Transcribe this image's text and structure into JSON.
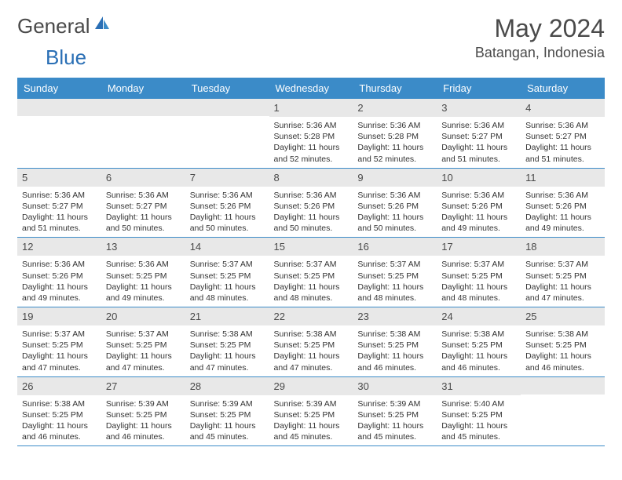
{
  "logo": {
    "general": "General",
    "blue": "Blue"
  },
  "title": "May 2024",
  "location": "Batangan, Indonesia",
  "colors": {
    "header_bg": "#3b8bc8",
    "header_text": "#ffffff",
    "daynum_bg": "#e8e8e8",
    "border": "#3b8bc8",
    "text": "#333333",
    "logo_gray": "#4a4a4a",
    "logo_blue": "#2a6fb5",
    "page_bg": "#ffffff"
  },
  "typography": {
    "title_fontsize": 32,
    "location_fontsize": 18,
    "weekday_fontsize": 13,
    "daynum_fontsize": 13,
    "body_fontsize": 10.5
  },
  "weekdays": [
    "Sunday",
    "Monday",
    "Tuesday",
    "Wednesday",
    "Thursday",
    "Friday",
    "Saturday"
  ],
  "weeks": [
    [
      {
        "n": "",
        "sr": "",
        "ss": "",
        "dl": ""
      },
      {
        "n": "",
        "sr": "",
        "ss": "",
        "dl": ""
      },
      {
        "n": "",
        "sr": "",
        "ss": "",
        "dl": ""
      },
      {
        "n": "1",
        "sr": "5:36 AM",
        "ss": "5:28 PM",
        "dl": "11 hours and 52 minutes."
      },
      {
        "n": "2",
        "sr": "5:36 AM",
        "ss": "5:28 PM",
        "dl": "11 hours and 52 minutes."
      },
      {
        "n": "3",
        "sr": "5:36 AM",
        "ss": "5:27 PM",
        "dl": "11 hours and 51 minutes."
      },
      {
        "n": "4",
        "sr": "5:36 AM",
        "ss": "5:27 PM",
        "dl": "11 hours and 51 minutes."
      }
    ],
    [
      {
        "n": "5",
        "sr": "5:36 AM",
        "ss": "5:27 PM",
        "dl": "11 hours and 51 minutes."
      },
      {
        "n": "6",
        "sr": "5:36 AM",
        "ss": "5:27 PM",
        "dl": "11 hours and 50 minutes."
      },
      {
        "n": "7",
        "sr": "5:36 AM",
        "ss": "5:26 PM",
        "dl": "11 hours and 50 minutes."
      },
      {
        "n": "8",
        "sr": "5:36 AM",
        "ss": "5:26 PM",
        "dl": "11 hours and 50 minutes."
      },
      {
        "n": "9",
        "sr": "5:36 AM",
        "ss": "5:26 PM",
        "dl": "11 hours and 50 minutes."
      },
      {
        "n": "10",
        "sr": "5:36 AM",
        "ss": "5:26 PM",
        "dl": "11 hours and 49 minutes."
      },
      {
        "n": "11",
        "sr": "5:36 AM",
        "ss": "5:26 PM",
        "dl": "11 hours and 49 minutes."
      }
    ],
    [
      {
        "n": "12",
        "sr": "5:36 AM",
        "ss": "5:26 PM",
        "dl": "11 hours and 49 minutes."
      },
      {
        "n": "13",
        "sr": "5:36 AM",
        "ss": "5:25 PM",
        "dl": "11 hours and 49 minutes."
      },
      {
        "n": "14",
        "sr": "5:37 AM",
        "ss": "5:25 PM",
        "dl": "11 hours and 48 minutes."
      },
      {
        "n": "15",
        "sr": "5:37 AM",
        "ss": "5:25 PM",
        "dl": "11 hours and 48 minutes."
      },
      {
        "n": "16",
        "sr": "5:37 AM",
        "ss": "5:25 PM",
        "dl": "11 hours and 48 minutes."
      },
      {
        "n": "17",
        "sr": "5:37 AM",
        "ss": "5:25 PM",
        "dl": "11 hours and 48 minutes."
      },
      {
        "n": "18",
        "sr": "5:37 AM",
        "ss": "5:25 PM",
        "dl": "11 hours and 47 minutes."
      }
    ],
    [
      {
        "n": "19",
        "sr": "5:37 AM",
        "ss": "5:25 PM",
        "dl": "11 hours and 47 minutes."
      },
      {
        "n": "20",
        "sr": "5:37 AM",
        "ss": "5:25 PM",
        "dl": "11 hours and 47 minutes."
      },
      {
        "n": "21",
        "sr": "5:38 AM",
        "ss": "5:25 PM",
        "dl": "11 hours and 47 minutes."
      },
      {
        "n": "22",
        "sr": "5:38 AM",
        "ss": "5:25 PM",
        "dl": "11 hours and 47 minutes."
      },
      {
        "n": "23",
        "sr": "5:38 AM",
        "ss": "5:25 PM",
        "dl": "11 hours and 46 minutes."
      },
      {
        "n": "24",
        "sr": "5:38 AM",
        "ss": "5:25 PM",
        "dl": "11 hours and 46 minutes."
      },
      {
        "n": "25",
        "sr": "5:38 AM",
        "ss": "5:25 PM",
        "dl": "11 hours and 46 minutes."
      }
    ],
    [
      {
        "n": "26",
        "sr": "5:38 AM",
        "ss": "5:25 PM",
        "dl": "11 hours and 46 minutes."
      },
      {
        "n": "27",
        "sr": "5:39 AM",
        "ss": "5:25 PM",
        "dl": "11 hours and 46 minutes."
      },
      {
        "n": "28",
        "sr": "5:39 AM",
        "ss": "5:25 PM",
        "dl": "11 hours and 45 minutes."
      },
      {
        "n": "29",
        "sr": "5:39 AM",
        "ss": "5:25 PM",
        "dl": "11 hours and 45 minutes."
      },
      {
        "n": "30",
        "sr": "5:39 AM",
        "ss": "5:25 PM",
        "dl": "11 hours and 45 minutes."
      },
      {
        "n": "31",
        "sr": "5:40 AM",
        "ss": "5:25 PM",
        "dl": "11 hours and 45 minutes."
      },
      {
        "n": "",
        "sr": "",
        "ss": "",
        "dl": ""
      }
    ]
  ],
  "labels": {
    "sunrise": "Sunrise:",
    "sunset": "Sunset:",
    "daylight": "Daylight:"
  }
}
